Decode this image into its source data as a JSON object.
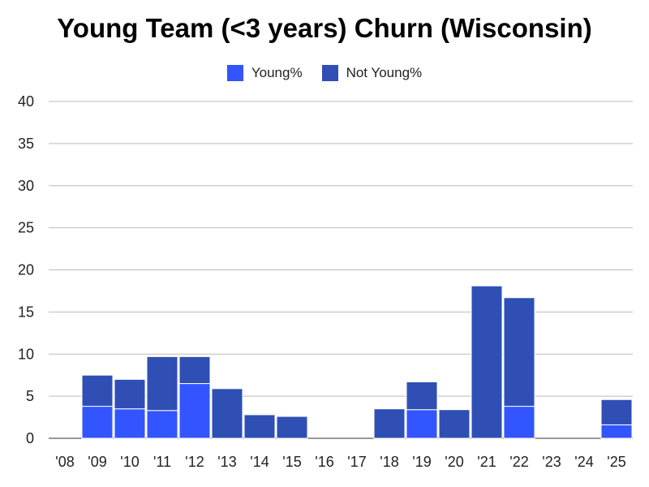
{
  "chart_data": {
    "type": "bar",
    "stacked": true,
    "title": "Young Team (<3 years) Churn (Wisconsin)",
    "categories": [
      "'08",
      "'09",
      "'10",
      "'11",
      "'12",
      "'13",
      "'14",
      "'15",
      "'16",
      "'17",
      "'18",
      "'19",
      "'20",
      "'21",
      "'22",
      "'23",
      "'24",
      "'25"
    ],
    "series": [
      {
        "name": "Young%",
        "color": "#3355ff",
        "values": [
          0,
          3.8,
          3.5,
          3.3,
          6.5,
          0,
          0,
          0,
          0,
          0,
          0,
          3.4,
          0,
          0,
          3.8,
          0,
          0,
          1.6
        ]
      },
      {
        "name": "Not Young%",
        "color": "#2f4fb5",
        "values": [
          0,
          3.7,
          3.5,
          6.4,
          3.2,
          5.9,
          2.8,
          2.6,
          0,
          0,
          3.5,
          3.3,
          3.4,
          18.1,
          12.9,
          0,
          0,
          3.0
        ]
      }
    ],
    "yticks": [
      "0",
      "5",
      "10",
      "15",
      "20",
      "25",
      "30",
      "35",
      "40"
    ],
    "ylim": [
      0,
      40
    ],
    "grid": true,
    "legend_position": "top"
  }
}
